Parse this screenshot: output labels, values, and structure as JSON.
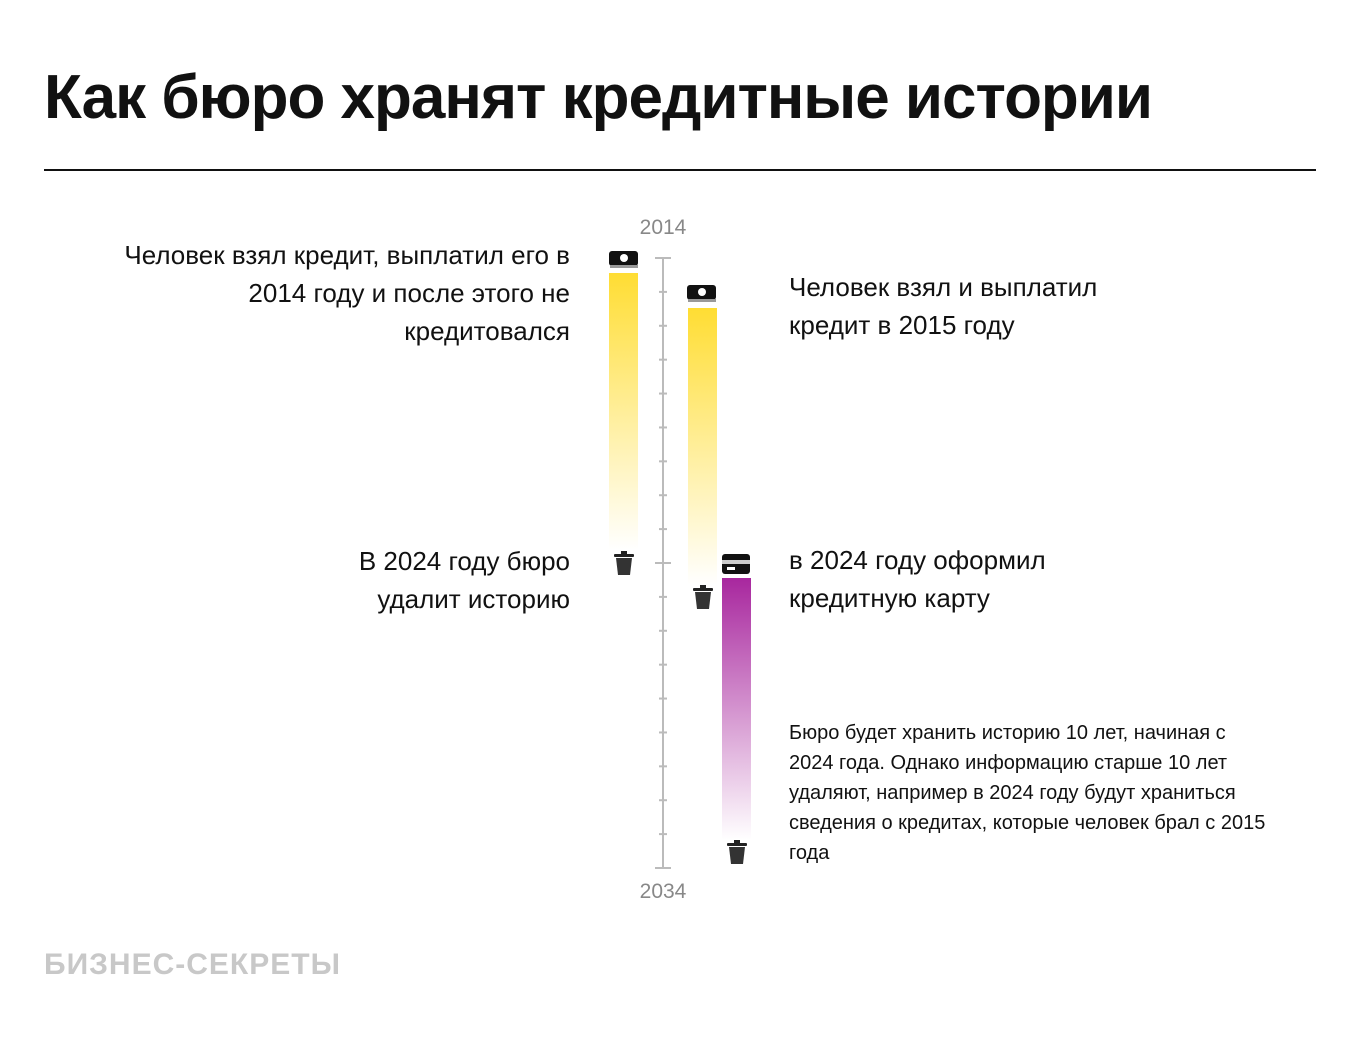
{
  "title": "Как бюро хранят кредитные истории",
  "axis": {
    "start_label": "2014",
    "end_label": "2034",
    "start_year": 2014,
    "end_year": 2034,
    "marker_year": 2024
  },
  "case1": {
    "text": "Человек взял кредит, выплатил его в 2014 году и после этого не кредитовался",
    "end_text": "В 2024 году бюро удалит историю",
    "start_year": 2014,
    "end_year": 2024,
    "color": "#FFDD33"
  },
  "case2": {
    "text": "Человек взял и выплатил кредит в 2015 году",
    "start_year": 2015,
    "end_year": 2025,
    "color": "#FFDD33"
  },
  "case3": {
    "text": "в 2024 году оформил кредитную карту",
    "start_year": 2024,
    "end_year": 2034,
    "color": "#A8279E"
  },
  "note": "Бюро будет хранить историю 10 лет, начиная с 2024 года. Однако информацию старше 10 лет удаляют, например в 2024 году будут храниться сведения о кредитах, которые человек брал с 2015 года",
  "brand": "БИЗНЕС-СЕКРЕТЫ"
}
